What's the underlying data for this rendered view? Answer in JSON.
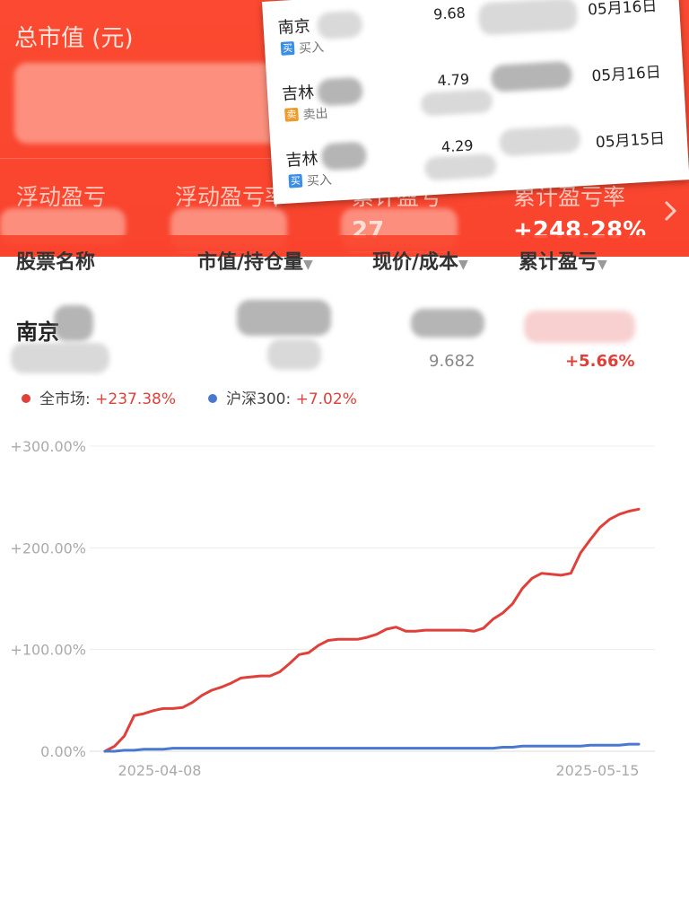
{
  "header": {
    "title": "总市值 (元)",
    "stats": [
      {
        "label": "浮动盈亏",
        "value": ""
      },
      {
        "label": "浮动盈亏率",
        "value": ""
      },
      {
        "label": "累计盈亏",
        "value": "27"
      },
      {
        "label": "累计盈亏率",
        "value": "+248.28%"
      }
    ]
  },
  "trades": [
    {
      "name": "南京",
      "action": "买入",
      "tag": "买",
      "type": "buy",
      "price": "9.68",
      "date": "05月16日"
    },
    {
      "name": "吉林",
      "action": "卖出",
      "tag": "卖",
      "type": "sell",
      "price": "4.79",
      "date": "05月16日"
    },
    {
      "name": "吉林",
      "action": "买入",
      "tag": "买",
      "type": "buy",
      "price": "4.29",
      "date": "05月15日"
    }
  ],
  "table": {
    "columns": [
      "股票名称",
      "市值/持仓量",
      "现价/成本",
      "累计盈亏"
    ],
    "rows": [
      {
        "name": "南京",
        "cost": "9.682",
        "pct": "+5.66%"
      }
    ]
  },
  "legend": [
    {
      "label": "全市场: ",
      "value": "+237.38%",
      "color": "#e0403a"
    },
    {
      "label": "沪深300: ",
      "value": "+7.02%",
      "color": "#4a78d0"
    }
  ],
  "colors": {
    "header": "#f9442e",
    "up": "#e0403a",
    "benchmark": "#4a78d0"
  },
  "chart_data": {
    "type": "line",
    "x_ticks": [
      "2025-04-08",
      "2025-05-15"
    ],
    "y_ticks": [
      "0.00%",
      "+100.00%",
      "+200.00%",
      "+300.00%"
    ],
    "ylim": [
      0,
      300
    ],
    "grid": true,
    "series": [
      {
        "name": "全市场",
        "color": "#e0403a",
        "values": [
          0,
          5,
          15,
          35,
          37,
          40,
          42,
          42,
          43,
          48,
          55,
          60,
          63,
          67,
          72,
          73,
          74,
          74,
          78,
          86,
          95,
          97,
          104,
          109,
          110,
          110,
          110,
          112,
          115,
          120,
          122,
          118,
          118,
          119,
          119,
          119,
          119,
          119,
          118,
          121,
          130,
          136,
          145,
          160,
          170,
          175,
          174,
          173,
          175,
          195,
          208,
          220,
          228,
          233,
          236,
          238
        ]
      },
      {
        "name": "沪深300",
        "color": "#4a78d0",
        "values": [
          0,
          0,
          1,
          1,
          2,
          2,
          2,
          3,
          3,
          3,
          3,
          3,
          3,
          3,
          3,
          3,
          3,
          3,
          3,
          3,
          3,
          3,
          3,
          3,
          3,
          3,
          3,
          3,
          3,
          3,
          3,
          3,
          3,
          3,
          3,
          3,
          3,
          3,
          3,
          3,
          3,
          4,
          4,
          5,
          5,
          5,
          5,
          5,
          5,
          5,
          6,
          6,
          6,
          6,
          7,
          7
        ]
      }
    ]
  }
}
